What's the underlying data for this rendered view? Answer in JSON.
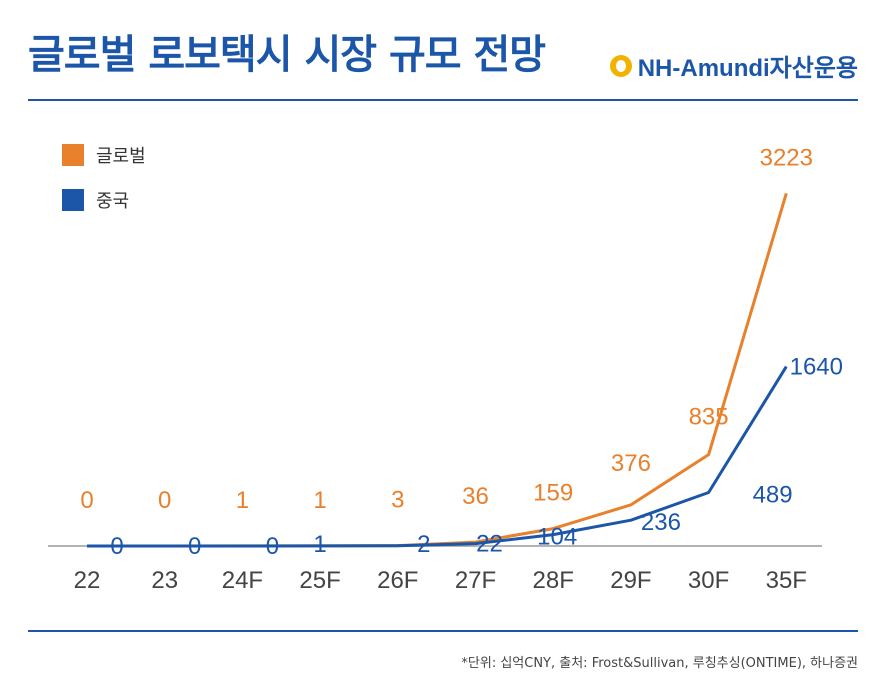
{
  "header": {
    "title": "글로벌 로보택시 시장 규모 전망",
    "brand_name": "NH-Amundi자산운용",
    "brand_color": "#1c56a8",
    "logo_color": "#f2b300"
  },
  "footnote": "*단위: 십억CNY, 출처: Frost&Sullivan, 루칭추싱(ONTIME), 하나증권",
  "chart_data": {
    "type": "line",
    "categories": [
      "22",
      "23",
      "24F",
      "25F",
      "26F",
      "27F",
      "28F",
      "29F",
      "30F",
      "35F"
    ],
    "series": [
      {
        "name": "글로벌",
        "color": "#e8802c",
        "values": [
          0,
          0,
          1,
          1,
          3,
          36,
          159,
          376,
          835,
          3223
        ]
      },
      {
        "name": "중국",
        "color": "#1c56a8",
        "values": [
          0,
          0,
          0,
          1,
          2,
          22,
          104,
          236,
          489,
          1640
        ]
      }
    ],
    "legend_position": "top-left",
    "ylim": [
      0,
      3300
    ],
    "grid": false
  }
}
